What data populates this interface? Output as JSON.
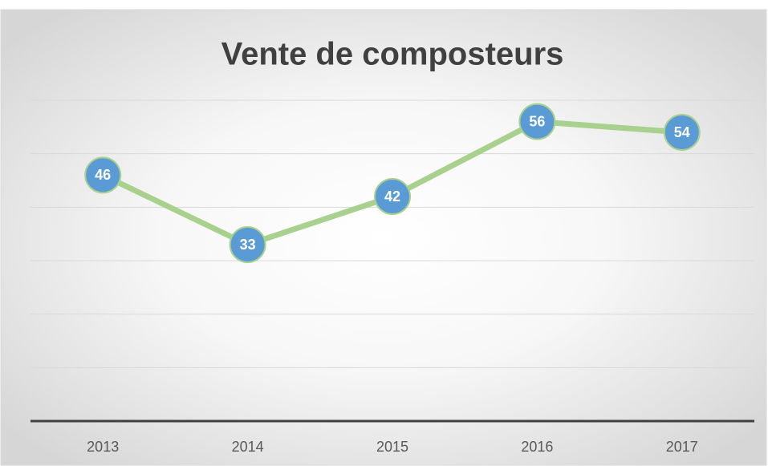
{
  "chart_data": {
    "type": "line",
    "title": "Vente de composteurs",
    "categories": [
      "2013",
      "2014",
      "2015",
      "2016",
      "2017"
    ],
    "values": [
      46,
      33,
      42,
      56,
      54
    ],
    "color": "#a9d18e",
    "marker_color": "#5b9bd5",
    "ylim": [
      0,
      60
    ],
    "yticks": [
      0,
      10,
      20,
      30,
      40,
      50,
      60
    ],
    "grid": true
  }
}
